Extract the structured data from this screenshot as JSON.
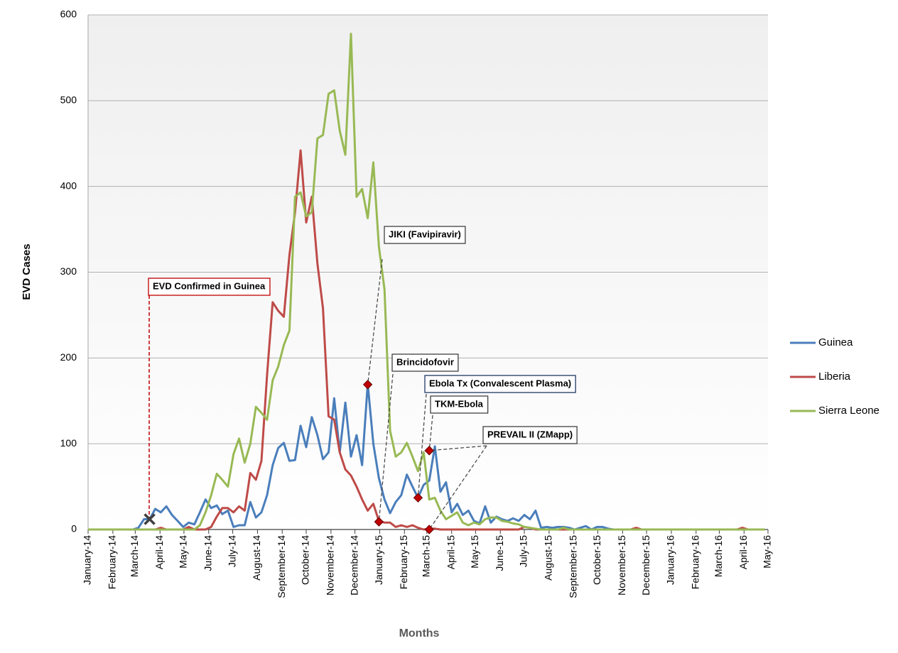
{
  "chart_data": {
    "type": "line",
    "xlabel": "Months",
    "ylabel": "EVD Cases",
    "x": [
      0,
      1,
      2,
      3,
      4,
      5,
      6,
      7,
      8,
      9,
      10,
      11,
      12,
      13,
      14,
      15,
      16,
      17,
      18,
      19,
      20,
      21,
      22,
      23,
      24,
      25,
      26,
      27,
      28,
      29,
      30,
      31,
      32,
      33,
      34,
      35,
      36,
      37,
      38,
      39,
      40,
      41,
      42,
      43,
      44,
      45,
      46,
      47,
      48,
      49,
      50,
      51,
      52,
      53,
      54,
      55,
      56,
      57,
      58,
      59,
      60,
      61,
      62,
      63,
      64,
      65,
      66,
      67,
      68,
      69,
      70,
      71,
      72,
      73,
      74,
      75,
      76,
      77,
      78,
      79,
      80,
      81,
      82,
      83,
      84,
      85,
      86,
      87,
      88,
      89,
      90,
      91,
      92,
      93,
      94,
      95,
      96,
      97,
      98,
      99,
      100,
      101,
      102,
      103,
      104,
      105,
      106,
      107,
      108,
      109,
      110,
      111,
      112,
      113,
      114,
      115,
      116,
      117,
      118,
      119,
      120,
      121
    ],
    "xlim": [
      0,
      121.57
    ],
    "xticks": [
      {
        "value": 0,
        "label": "January-14"
      },
      {
        "value": 4.43,
        "label": "February-14"
      },
      {
        "value": 8.43,
        "label": "March-14"
      },
      {
        "value": 12.86,
        "label": "April-14"
      },
      {
        "value": 17.14,
        "label": "May-14"
      },
      {
        "value": 21.57,
        "label": "June-14"
      },
      {
        "value": 25.86,
        "label": "July-14"
      },
      {
        "value": 30.29,
        "label": "August-14"
      },
      {
        "value": 34.71,
        "label": "September-14"
      },
      {
        "value": 39,
        "label": "October-14"
      },
      {
        "value": 43.43,
        "label": "November-14"
      },
      {
        "value": 47.71,
        "label": "December-14"
      },
      {
        "value": 52.14,
        "label": "January-15"
      },
      {
        "value": 56.57,
        "label": "February-15"
      },
      {
        "value": 60.57,
        "label": "March-15"
      },
      {
        "value": 65,
        "label": "April-15"
      },
      {
        "value": 69.29,
        "label": "May-15"
      },
      {
        "value": 73.71,
        "label": "June-15"
      },
      {
        "value": 78,
        "label": "July-15"
      },
      {
        "value": 82.43,
        "label": "August-15"
      },
      {
        "value": 86.86,
        "label": "September-15"
      },
      {
        "value": 91.14,
        "label": "October-15"
      },
      {
        "value": 95.57,
        "label": "November-15"
      },
      {
        "value": 99.86,
        "label": "December-15"
      },
      {
        "value": 104.29,
        "label": "January-16"
      },
      {
        "value": 108.71,
        "label": "February-16"
      },
      {
        "value": 112.86,
        "label": "March-16"
      },
      {
        "value": 117.29,
        "label": "April-16"
      },
      {
        "value": 121.57,
        "label": "May-16"
      }
    ],
    "ylim": [
      0,
      600
    ],
    "yticks": [
      0,
      100,
      200,
      300,
      400,
      500,
      600
    ],
    "grid": true,
    "legend": "right",
    "series": [
      {
        "name": "Guinea",
        "color": "#4a7ebb",
        "values": [
          0,
          0,
          0,
          0,
          0,
          0,
          0,
          0,
          0,
          2,
          12,
          12,
          24,
          20,
          27,
          17,
          10,
          3,
          8,
          6,
          20,
          35,
          25,
          28,
          18,
          22,
          3,
          5,
          5,
          32,
          14,
          20,
          40,
          75,
          95,
          101,
          80,
          81,
          121,
          96,
          131,
          110,
          82,
          90,
          153,
          90,
          148,
          85,
          110,
          75,
          170,
          100,
          60,
          35,
          19,
          32,
          40,
          64,
          50,
          37,
          52,
          57,
          97,
          44,
          55,
          20,
          30,
          17,
          22,
          10,
          7,
          27,
          8,
          15,
          12,
          10,
          13,
          10,
          17,
          12,
          22,
          2,
          3,
          2,
          3,
          3,
          2,
          0,
          2,
          4,
          0,
          3,
          3,
          1,
          0,
          0,
          0,
          0,
          0,
          0,
          0,
          0,
          0,
          0,
          0,
          0,
          0,
          0,
          0,
          0,
          0,
          0,
          0,
          0,
          0,
          0,
          0,
          0,
          0,
          0,
          0,
          0
        ]
      },
      {
        "name": "Liberia",
        "color": "#be4b48",
        "values": [
          0,
          0,
          0,
          0,
          0,
          0,
          0,
          0,
          0,
          0,
          0,
          0,
          0,
          2,
          0,
          0,
          0,
          0,
          3,
          0,
          0,
          0,
          3,
          15,
          25,
          25,
          20,
          27,
          22,
          66,
          58,
          80,
          180,
          265,
          255,
          248,
          320,
          370,
          442,
          358,
          388,
          310,
          258,
          132,
          128,
          90,
          70,
          63,
          50,
          35,
          22,
          30,
          10,
          8,
          8,
          3,
          5,
          3,
          5,
          2,
          0,
          1,
          1,
          0,
          0,
          0,
          0,
          0,
          0,
          0,
          0,
          0,
          0,
          0,
          0,
          0,
          0,
          0,
          3,
          2,
          0,
          0,
          0,
          0,
          0,
          0,
          0,
          0,
          0,
          0,
          0,
          0,
          0,
          0,
          0,
          0,
          0,
          0,
          2,
          0,
          0,
          0,
          0,
          0,
          0,
          0,
          0,
          0,
          0,
          0,
          0,
          0,
          0,
          0,
          0,
          0,
          0,
          2,
          0,
          0,
          0,
          0
        ]
      },
      {
        "name": "Sierra Leone",
        "color": "#98b954",
        "values": [
          0,
          0,
          0,
          0,
          0,
          0,
          0,
          0,
          0,
          0,
          0,
          0,
          0,
          0,
          0,
          0,
          0,
          0,
          0,
          0,
          5,
          20,
          40,
          65,
          58,
          50,
          88,
          106,
          78,
          100,
          143,
          136,
          128,
          174,
          190,
          215,
          232,
          388,
          393,
          365,
          370,
          456,
          460,
          508,
          512,
          465,
          437,
          578,
          388,
          397,
          363,
          428,
          330,
          280,
          115,
          85,
          90,
          101,
          85,
          68,
          90,
          35,
          37,
          22,
          12,
          16,
          20,
          8,
          5,
          8,
          6,
          12,
          14,
          14,
          10,
          9,
          7,
          6,
          3,
          2,
          1,
          0,
          0,
          0,
          0,
          2,
          0,
          0,
          0,
          0,
          0,
          0,
          0,
          0,
          0,
          0,
          0,
          0,
          0,
          0,
          0,
          0,
          0,
          0,
          0,
          0,
          0,
          0,
          0,
          0,
          0,
          0,
          0,
          0,
          0,
          0,
          0,
          0,
          0,
          0,
          0,
          0
        ]
      }
    ],
    "annotations": [
      {
        "text": "EVD Confirmed in Guinea",
        "color": "#c00000",
        "marker": "cross",
        "points": [
          {
            "x": 11,
            "y": 12
          }
        ]
      },
      {
        "text": "JIKI (Favipiravir)",
        "color": "#404040",
        "marker": "diamond",
        "points": [
          {
            "x": 50,
            "y": 169
          }
        ]
      },
      {
        "text": "Brincidofovir",
        "color": "#404040",
        "marker": "diamond",
        "points": [
          {
            "x": 52,
            "y": 9
          }
        ]
      },
      {
        "text": "Ebola Tx (Convalescent Plasma)",
        "color": "#1f3864",
        "marker": "diamond",
        "points": [
          {
            "x": 59,
            "y": 37
          }
        ]
      },
      {
        "text": "TKM-Ebola",
        "color": "#404040",
        "marker": "diamond",
        "points": [
          {
            "x": 61,
            "y": 92
          }
        ]
      },
      {
        "text": "PREVAIL II (ZMapp)",
        "color": "#404040",
        "marker": "diamond",
        "points": [
          {
            "x": 61,
            "y": 92
          },
          {
            "x": 61,
            "y": 0
          }
        ]
      }
    ]
  }
}
